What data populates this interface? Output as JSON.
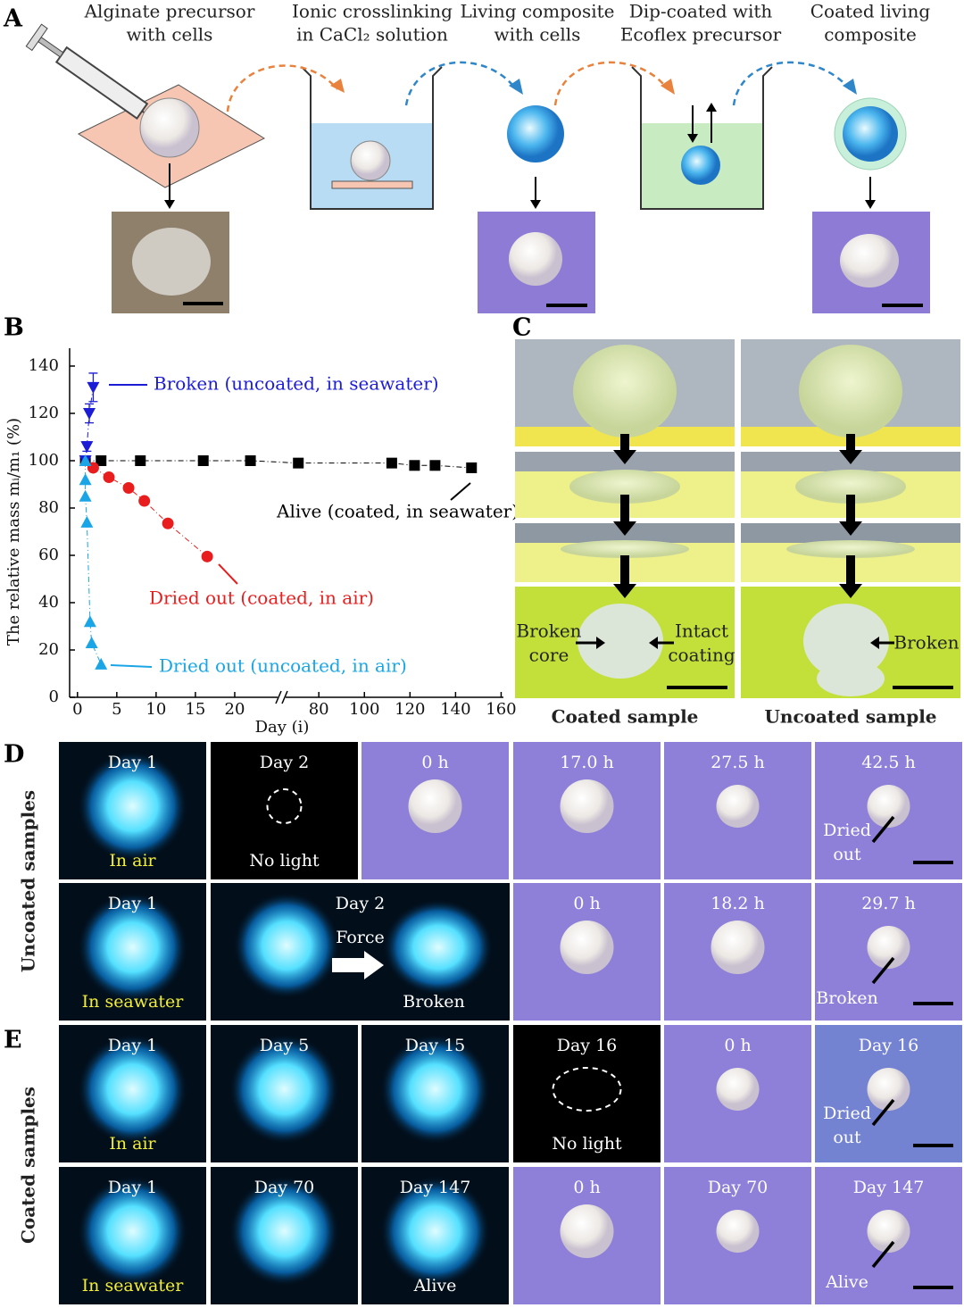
{
  "panel_labels": [
    "A",
    "B",
    "C",
    "D",
    "E"
  ],
  "panel_a": {
    "steps": [
      [
        "Alginate precursor",
        "with cells"
      ],
      [
        "Ionic crosslinking",
        "in CaCl₂ solution"
      ],
      [
        "Living composite",
        "with cells"
      ],
      [
        "Dip-coated with",
        "Ecoflex precursor"
      ],
      [
        "Coated living",
        "composite"
      ]
    ]
  },
  "chart_data": {
    "type": "scatter",
    "ylabel": "The relative mass mᵢ/m₁ (%)",
    "xlabel": "Day (i)",
    "ylim": [
      0,
      140
    ],
    "yticks": [
      0,
      20,
      40,
      60,
      80,
      100,
      120,
      140
    ],
    "x_segments": [
      {
        "xlim": [
          -1,
          25
        ],
        "xticks": [
          0,
          5,
          10,
          15,
          20
        ]
      },
      {
        "xlim": [
          67,
          161
        ],
        "xticks": [
          80,
          100,
          120,
          140,
          160
        ]
      }
    ],
    "series": [
      {
        "name": "Alive (coated, in seawater)",
        "color": "#000000",
        "marker": "square",
        "x": [
          1,
          3,
          8,
          16,
          22,
          71,
          112,
          122,
          131,
          147
        ],
        "values": [
          100,
          100,
          100,
          100,
          100,
          99,
          99,
          98,
          98,
          97
        ]
      },
      {
        "name": "Dried out (coated, in air)",
        "color": "#e81e1e",
        "marker": "circle",
        "x": [
          2,
          4,
          6.5,
          8.5,
          11.5,
          16.5
        ],
        "values": [
          97,
          93,
          88.5,
          83,
          73.5,
          59.5
        ]
      },
      {
        "name": "Broken (uncoated, in seawater)",
        "color": "#1c1cd6",
        "marker": "triangle-down",
        "x": [
          1,
          1.2,
          1.5,
          2
        ],
        "values": [
          100,
          106,
          120,
          131
        ],
        "errors": [
          0,
          2,
          4,
          6
        ]
      },
      {
        "name": "Dried out (uncoated, in air)",
        "color": "#1aa6e6",
        "marker": "triangle-up",
        "x": [
          1,
          1,
          1,
          1.2,
          1.6,
          1.8,
          3
        ],
        "values": [
          100,
          92,
          85,
          74,
          32,
          23,
          14
        ]
      }
    ]
  },
  "panel_c": {
    "columns": [
      "Coated sample",
      "Uncoated sample"
    ],
    "coated_labels": [
      [
        "Broken",
        "core"
      ],
      [
        "Intact",
        "coating"
      ]
    ],
    "uncoated_label": "Broken"
  },
  "panel_d": {
    "side": "Uncoated samples",
    "rows": [
      [
        {
          "top": "Day 1",
          "bottom": "In air",
          "bottom_color": "#f2ee3a",
          "color": "#020e1a"
        },
        {
          "top": "Day 2",
          "bottom": "No light",
          "bottom_color": "#ffffff",
          "color": "#000000"
        },
        {
          "top": "0 h",
          "color": "#8e80d8"
        },
        {
          "top": "17.0 h",
          "color": "#8e80d8"
        },
        {
          "top": "27.5 h",
          "color": "#8e80d8"
        },
        {
          "top": "42.5 h",
          "note": [
            "Dried",
            "out"
          ],
          "color": "#8e80d8"
        }
      ],
      [
        {
          "top": "Day 1",
          "bottom": "In seawater",
          "bottom_color": "#f2ee3a",
          "color": "#020e1a"
        },
        {
          "top": "Day 2",
          "middle": "Force",
          "bottom": "Broken",
          "bottom_color": "#ffffff",
          "color": "#020e1a"
        },
        {
          "top": "0 h",
          "color": "#8e80d8"
        },
        {
          "top": "18.2 h",
          "color": "#8e80d8"
        },
        {
          "top": "29.7 h",
          "note": [
            "Broken"
          ],
          "color": "#8e80d8"
        }
      ]
    ]
  },
  "panel_e": {
    "side": "Coated samples",
    "rows": [
      [
        {
          "top": "Day 1",
          "bottom": "In air",
          "bottom_color": "#f2ee3a",
          "color": "#020e1a"
        },
        {
          "top": "Day 5",
          "color": "#020e1a"
        },
        {
          "top": "Day 15",
          "color": "#020e1a"
        },
        {
          "top": "Day 16",
          "bottom": "No light",
          "bottom_color": "#ffffff",
          "color": "#000000"
        },
        {
          "top": "0 h",
          "color": "#8e80d8"
        },
        {
          "top": "Day 16",
          "note": [
            "Dried",
            "out"
          ],
          "color": "#7482d2"
        }
      ],
      [
        {
          "top": "Day 1",
          "bottom": "In seawater",
          "bottom_color": "#f2ee3a",
          "color": "#020e1a"
        },
        {
          "top": "Day 70",
          "color": "#020e1a"
        },
        {
          "top": "Day 147",
          "bottom": "Alive",
          "bottom_color": "#ffffff",
          "color": "#020e1a"
        },
        {
          "top": "0 h",
          "color": "#8e80d8"
        },
        {
          "top": "Day 70",
          "color": "#8e80d8"
        },
        {
          "top": "Day 147",
          "note": [
            "Alive"
          ],
          "color": "#8e80d8"
        }
      ]
    ]
  }
}
